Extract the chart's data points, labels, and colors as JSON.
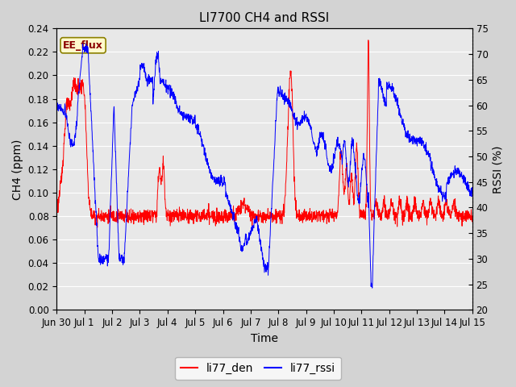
{
  "title": "LI7700 CH4 and RSSI",
  "xlabel": "Time",
  "ylabel_left": "CH4 (ppm)",
  "ylabel_right": "RSSI (%)",
  "annotation": "EE_flux",
  "legend_labels": [
    "li77_den",
    "li77_rssi"
  ],
  "legend_colors": [
    "red",
    "blue"
  ],
  "ylim_left": [
    0.0,
    0.24
  ],
  "ylim_right": [
    20,
    75
  ],
  "yticks_left": [
    0.0,
    0.02,
    0.04,
    0.06,
    0.08,
    0.1,
    0.12,
    0.14,
    0.16,
    0.18,
    0.2,
    0.22,
    0.24
  ],
  "yticks_right": [
    20,
    25,
    30,
    35,
    40,
    45,
    50,
    55,
    60,
    65,
    70,
    75
  ],
  "xtick_labels": [
    "Jun 30",
    "Jul 1",
    "Jul 2",
    "Jul 3",
    "Jul 4",
    "Jul 5",
    "Jul 6",
    "Jul 7",
    "Jul 8",
    "Jul 9",
    "Jul 10",
    "Jul 11",
    "Jul 12",
    "Jul 13",
    "Jul 14",
    "Jul 15"
  ],
  "background_color": "#d3d3d3",
  "plot_bg_color": "#e8e8e8",
  "grid_color": "white",
  "title_fontsize": 11,
  "axis_label_fontsize": 10,
  "tick_fontsize": 8.5,
  "legend_fontsize": 10
}
